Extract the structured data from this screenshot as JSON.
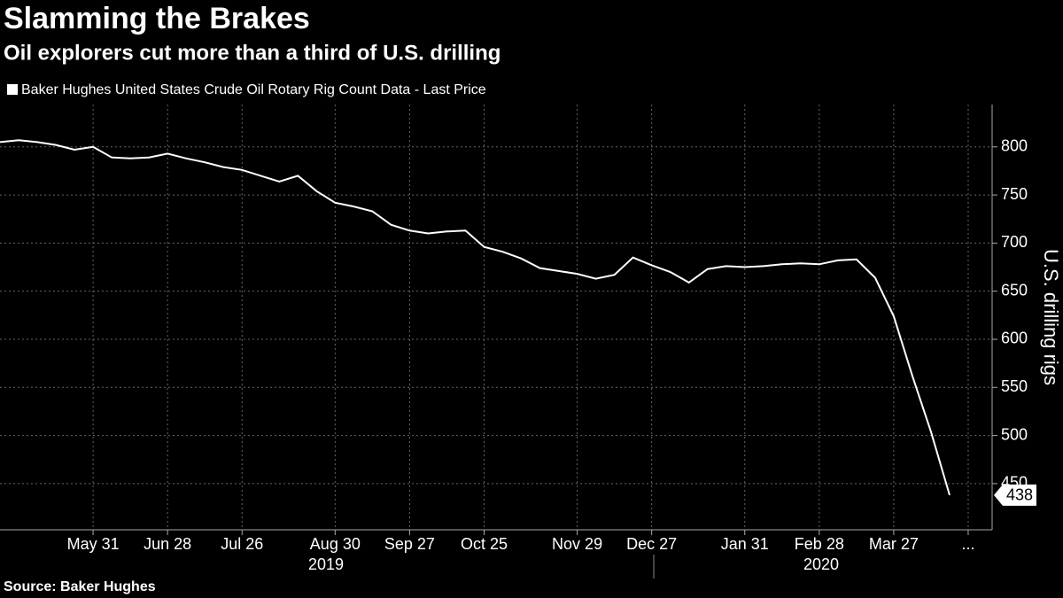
{
  "chart_data": {
    "type": "line",
    "title": "Slamming the Brakes",
    "subtitle": "Oil explorers cut more than a third of U.S. drilling",
    "source": "Source: Baker Hughes",
    "y_axis_label": "U.S. drilling rigs",
    "x": [
      "2019-04-26",
      "2019-05-03",
      "2019-05-10",
      "2019-05-17",
      "2019-05-24",
      "2019-05-31",
      "2019-06-07",
      "2019-06-14",
      "2019-06-21",
      "2019-06-28",
      "2019-07-05",
      "2019-07-12",
      "2019-07-19",
      "2019-07-26",
      "2019-08-02",
      "2019-08-09",
      "2019-08-16",
      "2019-08-23",
      "2019-08-30",
      "2019-09-06",
      "2019-09-13",
      "2019-09-20",
      "2019-09-27",
      "2019-10-04",
      "2019-10-11",
      "2019-10-18",
      "2019-10-25",
      "2019-11-01",
      "2019-11-08",
      "2019-11-15",
      "2019-11-22",
      "2019-11-29",
      "2019-12-06",
      "2019-12-13",
      "2019-12-20",
      "2019-12-27",
      "2020-01-03",
      "2020-01-10",
      "2020-01-17",
      "2020-01-24",
      "2020-01-31",
      "2020-02-07",
      "2020-02-14",
      "2020-02-21",
      "2020-02-28",
      "2020-03-06",
      "2020-03-13",
      "2020-03-20",
      "2020-03-27",
      "2020-04-03",
      "2020-04-10",
      "2020-04-17"
    ],
    "series": [
      {
        "name": "Baker Hughes United States Crude Oil Rotary Rig Count Data - Last Price",
        "color": "#ffffff",
        "values": [
          805,
          807,
          805,
          802,
          797,
          800,
          789,
          788,
          789,
          793,
          788,
          784,
          779,
          776,
          770,
          764,
          770,
          754,
          742,
          738,
          733,
          719,
          713,
          710,
          712,
          713,
          696,
          691,
          684,
          674,
          671,
          668,
          663,
          667,
          685,
          677,
          670,
          659,
          673,
          676,
          675,
          676,
          678,
          679,
          678,
          682,
          683,
          664,
          624,
          562,
          504,
          438
        ]
      }
    ],
    "xlim": [
      "2019-04-26",
      "2020-05-03"
    ],
    "xticks": [
      {
        "value": "2019-05-31",
        "label": "May 31"
      },
      {
        "value": "2019-06-28",
        "label": "Jun 28"
      },
      {
        "value": "2019-07-26",
        "label": "Jul 26"
      },
      {
        "value": "2019-08-30",
        "label": "Aug 30"
      },
      {
        "value": "2019-09-27",
        "label": "Sep 27"
      },
      {
        "value": "2019-10-25",
        "label": "Oct 25"
      },
      {
        "value": "2019-11-29",
        "label": "Nov 29"
      },
      {
        "value": "2019-12-27",
        "label": "Dec 27"
      },
      {
        "value": "2020-01-31",
        "label": "Jan 31"
      },
      {
        "value": "2020-02-28",
        "label": "Feb 28"
      },
      {
        "value": "2020-03-27",
        "label": "Mar 27"
      },
      {
        "value": "2020-04-24",
        "label": "..."
      }
    ],
    "year_labels": [
      "2019",
      "2020"
    ],
    "ylim": [
      402,
      844
    ],
    "yticks": [
      450,
      500,
      550,
      600,
      650,
      700,
      750,
      800
    ],
    "grid": true
  }
}
